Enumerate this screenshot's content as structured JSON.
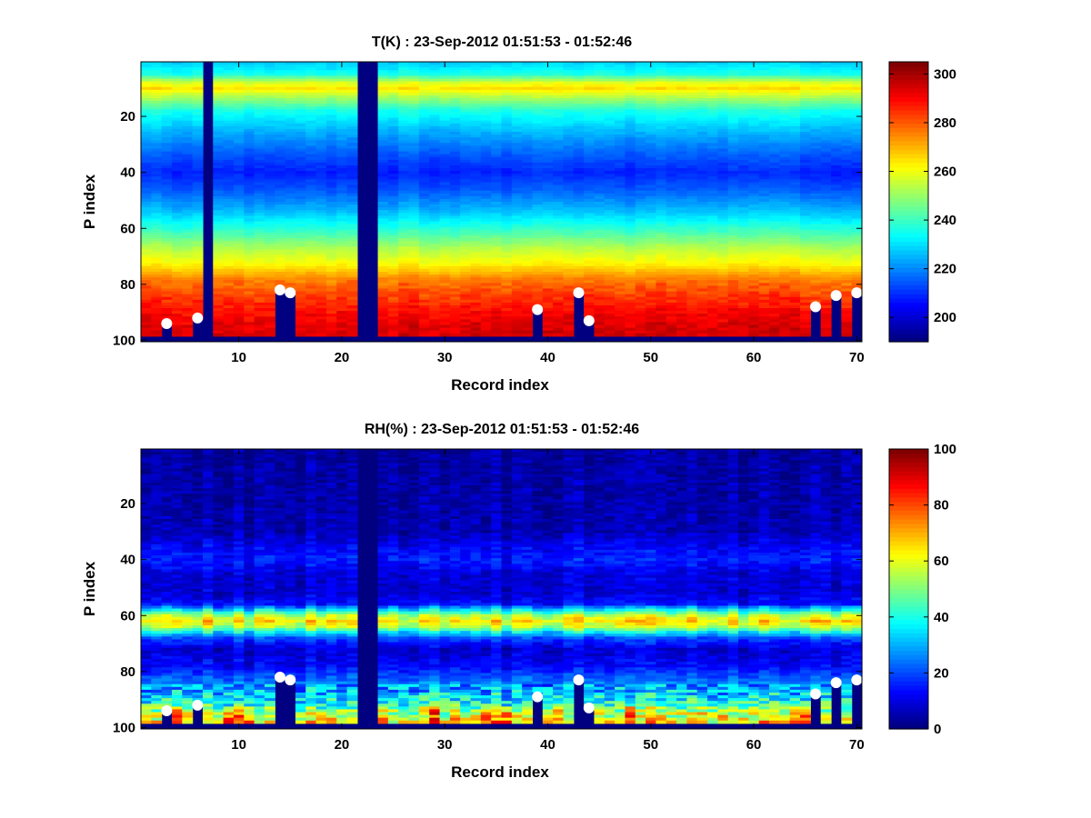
{
  "chart_data": [
    {
      "type": "heatmap",
      "title": "T(K) : 23-Sep-2012 01:51:53 - 01:52:46",
      "xlabel": "Record index",
      "ylabel": "P index",
      "xlim": [
        1,
        70
      ],
      "ylim": [
        1,
        100
      ],
      "y_reversed": true,
      "xticks": [
        10,
        20,
        30,
        40,
        50,
        60,
        70
      ],
      "yticks": [
        20,
        40,
        60,
        80,
        100
      ],
      "colormap": "jet",
      "clim": [
        190,
        305
      ],
      "colorbar_ticks": [
        200,
        220,
        240,
        260,
        280,
        300
      ],
      "profile_levels": [
        {
          "p": 1,
          "value": 228
        },
        {
          "p": 5,
          "value": 236
        },
        {
          "p": 8,
          "value": 258
        },
        {
          "p": 10,
          "value": 265
        },
        {
          "p": 12,
          "value": 257
        },
        {
          "p": 18,
          "value": 236
        },
        {
          "p": 26,
          "value": 224
        },
        {
          "p": 34,
          "value": 214
        },
        {
          "p": 40,
          "value": 208
        },
        {
          "p": 46,
          "value": 214
        },
        {
          "p": 54,
          "value": 226
        },
        {
          "p": 62,
          "value": 242
        },
        {
          "p": 67,
          "value": 253
        },
        {
          "p": 73,
          "value": 263
        },
        {
          "p": 78,
          "value": 276
        },
        {
          "p": 84,
          "value": 284
        },
        {
          "p": 90,
          "value": 290
        },
        {
          "p": 95,
          "value": 294
        },
        {
          "p": 98,
          "value": 295
        }
      ],
      "missing_columns": [
        7,
        22,
        23
      ],
      "surface_markers": [
        {
          "record": 3,
          "p": 94
        },
        {
          "record": 6,
          "p": 92
        },
        {
          "record": 14,
          "p": 82
        },
        {
          "record": 15,
          "p": 83
        },
        {
          "record": 39,
          "p": 89
        },
        {
          "record": 43,
          "p": 83
        },
        {
          "record": 44,
          "p": 93
        },
        {
          "record": 66,
          "p": 88
        },
        {
          "record": 68,
          "p": 84
        },
        {
          "record": 70,
          "p": 83
        }
      ],
      "surface_level_default": 98
    },
    {
      "type": "heatmap",
      "title": "RH(%) : 23-Sep-2012 01:51:53 - 01:52:46",
      "xlabel": "Record index",
      "ylabel": "P index",
      "xlim": [
        1,
        70
      ],
      "ylim": [
        1,
        100
      ],
      "y_reversed": true,
      "xticks": [
        10,
        20,
        30,
        40,
        50,
        60,
        70
      ],
      "yticks": [
        20,
        40,
        60,
        80,
        100
      ],
      "colormap": "jet",
      "clim": [
        0,
        100
      ],
      "colorbar_ticks": [
        0,
        20,
        40,
        60,
        80,
        100
      ],
      "profile_levels": [
        {
          "p": 1,
          "value": 3
        },
        {
          "p": 30,
          "value": 5
        },
        {
          "p": 36,
          "value": 12
        },
        {
          "p": 40,
          "value": 15
        },
        {
          "p": 45,
          "value": 9
        },
        {
          "p": 52,
          "value": 8
        },
        {
          "p": 56,
          "value": 14
        },
        {
          "p": 58,
          "value": 35
        },
        {
          "p": 60,
          "value": 55
        },
        {
          "p": 62,
          "value": 64
        },
        {
          "p": 64,
          "value": 56
        },
        {
          "p": 66,
          "value": 36
        },
        {
          "p": 68,
          "value": 20
        },
        {
          "p": 72,
          "value": 8
        },
        {
          "p": 78,
          "value": 12
        },
        {
          "p": 84,
          "value": 25
        },
        {
          "p": 88,
          "value": 33
        },
        {
          "p": 92,
          "value": 42
        },
        {
          "p": 95,
          "value": 55
        },
        {
          "p": 98,
          "value": 62
        }
      ],
      "missing_columns": [
        22,
        23
      ],
      "surface_markers": [
        {
          "record": 3,
          "p": 94
        },
        {
          "record": 6,
          "p": 92
        },
        {
          "record": 14,
          "p": 82
        },
        {
          "record": 15,
          "p": 83
        },
        {
          "record": 39,
          "p": 89
        },
        {
          "record": 43,
          "p": 83
        },
        {
          "record": 44,
          "p": 93
        },
        {
          "record": 66,
          "p": 88
        },
        {
          "record": 68,
          "p": 84
        },
        {
          "record": 70,
          "p": 83
        }
      ],
      "surface_level_default": 98
    }
  ]
}
